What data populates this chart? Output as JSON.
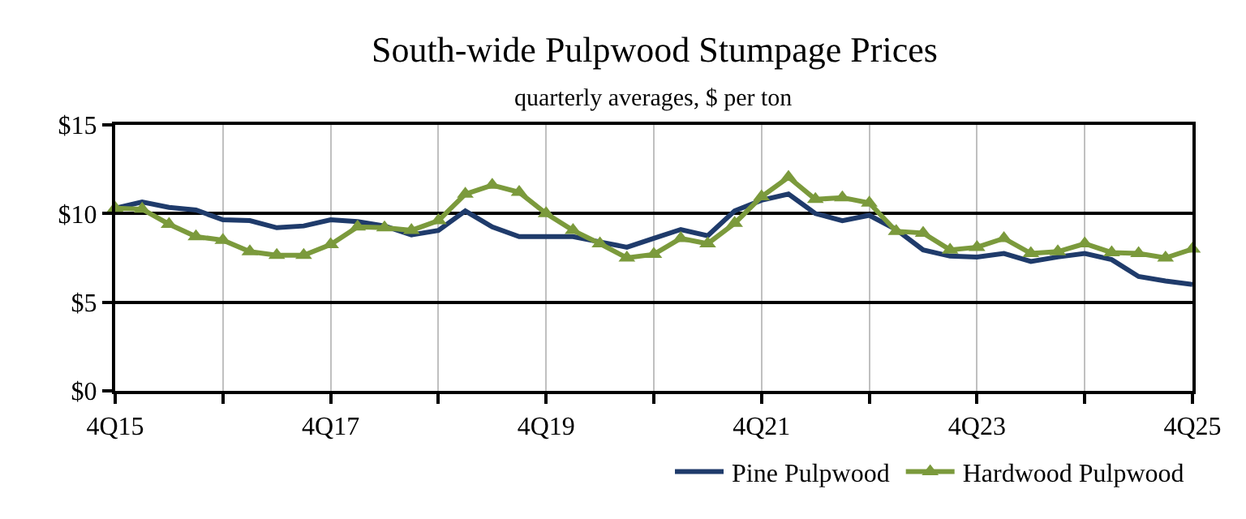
{
  "chart_data": {
    "type": "line",
    "title": "South-wide Pulpwood Stumpage Prices",
    "subtitle": "quarterly averages, $ per ton",
    "categories": [
      "4Q15",
      null,
      null,
      null,
      null,
      null,
      null,
      null,
      "4Q17",
      null,
      null,
      null,
      null,
      null,
      null,
      null,
      "4Q19",
      null,
      null,
      null,
      null,
      null,
      null,
      null,
      "4Q21",
      null,
      null,
      null,
      null,
      null,
      null,
      null,
      "4Q23",
      null,
      null,
      null,
      null,
      null,
      null,
      null,
      "4Q25"
    ],
    "series": [
      {
        "name": "Pine Pulpwood",
        "color": "#1f3b6b",
        "marker": "none",
        "values": [
          10.3,
          10.65,
          10.35,
          10.2,
          9.65,
          9.6,
          9.2,
          9.3,
          9.65,
          9.55,
          9.3,
          8.8,
          9.05,
          10.15,
          9.25,
          8.7,
          8.7,
          8.7,
          8.4,
          8.1,
          8.6,
          9.1,
          8.75,
          10.15,
          10.75,
          11.1,
          10.0,
          9.6,
          9.9,
          9.1,
          7.95,
          7.6,
          7.55,
          7.75,
          7.3,
          7.55,
          7.75,
          7.4,
          6.45,
          6.2,
          6.0
        ]
      },
      {
        "name": "Hardwood Pulpwood",
        "color": "#7b9a3c",
        "marker": "triangle",
        "values": [
          10.3,
          10.25,
          9.4,
          8.7,
          8.5,
          7.85,
          7.65,
          7.65,
          8.25,
          9.25,
          9.2,
          9.05,
          9.6,
          11.1,
          11.6,
          11.2,
          10.0,
          9.05,
          8.3,
          7.5,
          7.7,
          8.6,
          8.3,
          9.45,
          10.95,
          12.05,
          10.8,
          10.9,
          10.6,
          9.0,
          8.9,
          7.95,
          8.1,
          8.6,
          7.75,
          7.85,
          8.3,
          7.8,
          7.75,
          7.5,
          8.0
        ]
      }
    ],
    "ylim": [
      0,
      15
    ],
    "yticks": [
      {
        "value": 0,
        "label": "$0"
      },
      {
        "value": 5,
        "label": "$5"
      },
      {
        "value": 10,
        "label": "$10"
      },
      {
        "value": 15,
        "label": "$15"
      }
    ],
    "grid": true,
    "legend": "bottom right",
    "line_style": "solid"
  }
}
